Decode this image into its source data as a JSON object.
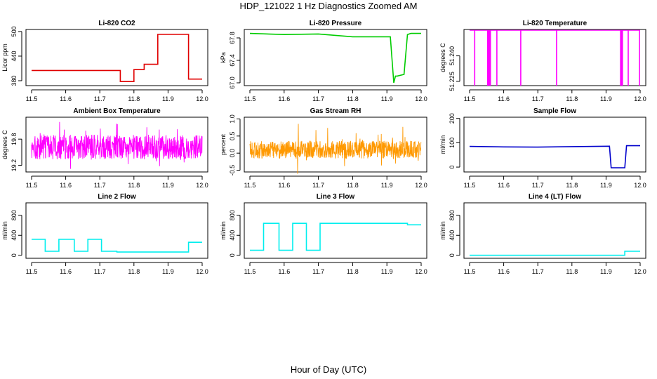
{
  "figure": {
    "title": "HDP_121022  1 Hz Diagnostics Zoomed AM",
    "xlabel": "Hour of Day (UTC)"
  },
  "chart_data": [
    {
      "type": "line",
      "title": "Li-820 CO2",
      "ylabel": "Licor ppm",
      "color": "#e00000",
      "xlim": [
        11.5,
        12.0
      ],
      "ylim": [
        368,
        505
      ],
      "xticks": [
        "11.5",
        "11.6",
        "11.7",
        "11.8",
        "11.9",
        "12.0"
      ],
      "yticks": [
        380,
        440,
        500
      ],
      "ytick_labels": [
        "380",
        "440",
        "500"
      ],
      "kind": "step",
      "x": [
        11.5,
        11.76,
        11.76,
        11.8,
        11.8,
        11.83,
        11.83,
        11.87,
        11.87,
        11.96,
        11.96,
        12.0
      ],
      "y": [
        405,
        405,
        378,
        378,
        407,
        407,
        420,
        420,
        493,
        493,
        384,
        384
      ]
    },
    {
      "type": "line",
      "title": "Li-820 Pressure",
      "ylabel": "kPa",
      "color": "#00cc00",
      "xlim": [
        11.5,
        12.0
      ],
      "ylim": [
        66.95,
        67.95
      ],
      "xticks": [
        "11.5",
        "11.6",
        "11.7",
        "11.8",
        "11.9",
        "12.0"
      ],
      "yticks": [
        67.0,
        67.4,
        67.8
      ],
      "ytick_labels": [
        "67.0",
        "67.4",
        "67.8"
      ],
      "kind": "step",
      "x": [
        11.5,
        11.6,
        11.7,
        11.8,
        11.91,
        11.92,
        11.925,
        11.93,
        11.95,
        11.96,
        11.97,
        12.0
      ],
      "y": [
        67.88,
        67.86,
        67.87,
        67.82,
        67.82,
        67.0,
        67.12,
        67.12,
        67.15,
        67.86,
        67.88,
        67.88
      ]
    },
    {
      "type": "line",
      "title": "Li-820 Temperature",
      "ylabel": "degrees C",
      "color": "#ff00ff",
      "xlim": [
        11.5,
        12.0
      ],
      "ylim": [
        51.2225,
        51.2555
      ],
      "xticks": [
        "11.5",
        "11.6",
        "11.7",
        "11.8",
        "11.9",
        "12.0"
      ],
      "yticks": [
        51.225,
        51.24
      ],
      "ytick_labels": [
        "51.225",
        "51.240"
      ],
      "kind": "spikes",
      "baseline": 51.255,
      "spike_to": 51.2225,
      "spikes_x": [
        11.515,
        11.553,
        11.555,
        11.557,
        11.559,
        11.561,
        11.58,
        11.65,
        11.755,
        11.942,
        11.946,
        11.948,
        11.965,
        11.998
      ]
    },
    {
      "type": "line",
      "title": "Ambient Box Temperature",
      "ylabel": "degrees C",
      "color": "#ff00ff",
      "xlim": [
        11.5,
        12.0
      ],
      "ylim": [
        19.05,
        20.3
      ],
      "xticks": [
        "11.5",
        "11.6",
        "11.7",
        "11.8",
        "11.9",
        "12.0"
      ],
      "yticks": [
        19.2,
        19.8
      ],
      "ytick_labels": [
        "19.2",
        "19.8"
      ],
      "kind": "noise",
      "mean": 19.62,
      "amp": 0.28,
      "maxamp": 0.6
    },
    {
      "type": "line",
      "title": "Gas Stream RH",
      "ylabel": "percent",
      "color": "#ff9900",
      "xlim": [
        11.5,
        12.0
      ],
      "ylim": [
        -0.55,
        1.05
      ],
      "xticks": [
        "11.5",
        "11.6",
        "11.7",
        "11.8",
        "11.9",
        "12.0"
      ],
      "yticks": [
        -0.5,
        0.0,
        0.5,
        1.0
      ],
      "ytick_labels": [
        "-0.5",
        "0.0",
        "0.5",
        "1.0"
      ],
      "kind": "noise",
      "mean": 0.1,
      "amp": 0.26,
      "maxamp": 0.9
    },
    {
      "type": "line",
      "title": "Sample Flow",
      "ylabel": "ml/min",
      "color": "#0000cc",
      "xlim": [
        11.5,
        12.0
      ],
      "ylim": [
        -20,
        205
      ],
      "xticks": [
        "11.5",
        "11.6",
        "11.7",
        "11.8",
        "11.9",
        "12.0"
      ],
      "yticks": [
        0,
        100,
        200
      ],
      "ytick_labels": [
        "0",
        "100",
        "200"
      ],
      "kind": "step",
      "x": [
        11.5,
        11.6,
        11.7,
        11.8,
        11.91,
        11.915,
        11.955,
        11.96,
        12.0
      ],
      "y": [
        85,
        83,
        82,
        84,
        86,
        -3,
        -3,
        88,
        88
      ]
    },
    {
      "type": "line",
      "title": "Line 2 Flow",
      "ylabel": "ml/min",
      "color": "#00eeee",
      "xlim": [
        11.5,
        12.0
      ],
      "ylim": [
        -60,
        1050
      ],
      "xticks": [
        "11.5",
        "11.6",
        "11.7",
        "11.8",
        "11.9",
        "12.0"
      ],
      "yticks": [
        0,
        400,
        800
      ],
      "ytick_labels": [
        "0",
        "400",
        "800"
      ],
      "kind": "step",
      "x": [
        11.5,
        11.54,
        11.54,
        11.58,
        11.58,
        11.625,
        11.625,
        11.665,
        11.665,
        11.705,
        11.705,
        11.75,
        11.75,
        11.96,
        11.96,
        12.0
      ],
      "y": [
        320,
        320,
        80,
        80,
        320,
        320,
        80,
        80,
        320,
        320,
        80,
        80,
        65,
        65,
        260,
        260
      ]
    },
    {
      "type": "line",
      "title": "Line 3 Flow",
      "ylabel": "ml/min",
      "color": "#00eeee",
      "xlim": [
        11.5,
        12.0
      ],
      "ylim": [
        -60,
        1050
      ],
      "xticks": [
        "11.5",
        "11.6",
        "11.7",
        "11.8",
        "11.9",
        "12.0"
      ],
      "yticks": [
        0,
        400,
        800
      ],
      "ytick_labels": [
        "0",
        "400",
        "800"
      ],
      "kind": "step",
      "x": [
        11.5,
        11.54,
        11.54,
        11.585,
        11.585,
        11.625,
        11.625,
        11.665,
        11.665,
        11.705,
        11.705,
        11.96,
        11.96,
        12.0
      ],
      "y": [
        100,
        100,
        640,
        640,
        100,
        100,
        640,
        640,
        100,
        100,
        640,
        640,
        610,
        610
      ]
    },
    {
      "type": "line",
      "title": "Line 4 (LT) Flow",
      "ylabel": "ml/min",
      "color": "#00eeee",
      "xlim": [
        11.5,
        12.0
      ],
      "ylim": [
        -60,
        1050
      ],
      "xticks": [
        "11.5",
        "11.6",
        "11.7",
        "11.8",
        "11.9",
        "12.0"
      ],
      "yticks": [
        0,
        400,
        800
      ],
      "ytick_labels": [
        "0",
        "400",
        "800"
      ],
      "kind": "step",
      "x": [
        11.5,
        11.955,
        11.955,
        12.0
      ],
      "y": [
        0,
        0,
        80,
        80
      ]
    }
  ]
}
